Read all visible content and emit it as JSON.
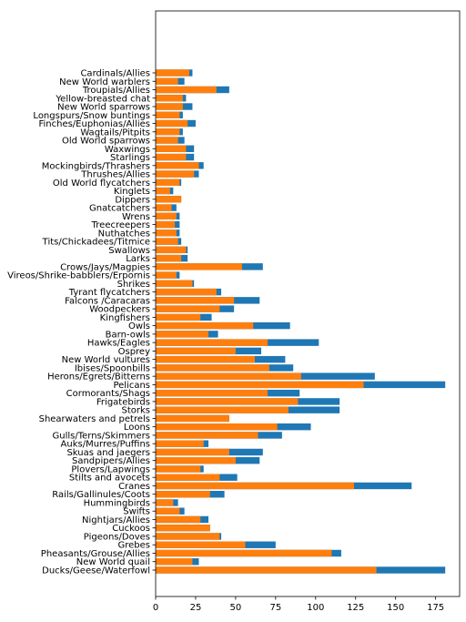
{
  "chart_data": {
    "type": "bar",
    "orientation": "horizontal",
    "stacked": false,
    "title": "",
    "xlabel": "",
    "ylabel": "",
    "xlim": [
      0,
      190
    ],
    "xticks": [
      0,
      25,
      50,
      75,
      100,
      125,
      150,
      175
    ],
    "grid": false,
    "legend": "none",
    "categories": [
      "Ducks/Geese/Waterfowl",
      "New World quail",
      "Pheasants/Grouse/Allies",
      "Grebes",
      "Pigeons/Doves",
      "Cuckoos",
      "Nightjars/Allies",
      "Swifts",
      "Hummingbirds",
      "Rails/Gallinules/Coots",
      "Cranes",
      "Stilts and avocets",
      "Plovers/Lapwings",
      "Sandpipers/Allies",
      "Skuas and jaegers",
      "Auks/Murres/Puffins",
      "Gulls/Terns/Skimmers",
      "Loons",
      "Shearwaters and petrels",
      "Storks",
      "Frigatebirds",
      "Cormorants/Shags",
      "Pelicans",
      "Herons/Egrets/Bitterns",
      "Ibises/Spoonbills",
      "New World vultures",
      "Osprey",
      "Hawks/Eagles",
      "Barn-owls",
      "Owls",
      "Kingfishers",
      "Woodpeckers",
      "Falcons /Caracaras",
      "Tyrant flycatchers",
      "Shrikes",
      "Vireos/Shrike-babblers/Erpornis",
      "Crows/Jays/Magpies",
      "Larks",
      "Swallows",
      "Tits/Chickadees/Titmice",
      "Nuthatches",
      "Treecreepers",
      "Wrens",
      "Gnatcatchers",
      "Dippers",
      "Kinglets",
      "Old World flycatchers",
      "Thrushes/Allies",
      "Mockingbirds/Thrashers",
      "Starlings",
      "Waxwings",
      "Old World sparrows",
      "Wagtails/Pitpits",
      "Finches/Euphonias/Allies",
      "Longspurs/Snow buntings",
      "New World sparrows",
      "Yellow-breasted chat",
      "Troupials/Allies",
      "New World warblers",
      "Cardinals/Allies"
    ],
    "series": [
      {
        "color": "#1f77b4",
        "values": [
          181,
          27,
          116,
          75,
          41,
          34,
          33,
          18,
          14,
          43,
          160,
          51,
          30,
          65,
          67,
          33,
          79,
          97,
          46,
          115,
          115,
          90,
          181,
          137,
          86,
          81,
          66,
          102,
          39,
          84,
          35,
          49,
          65,
          41,
          24,
          15,
          67,
          20,
          20,
          16,
          15,
          15,
          15,
          13,
          16,
          11,
          16,
          27,
          30,
          24,
          24,
          18,
          17,
          25,
          17,
          23,
          19,
          46,
          18,
          23
        ]
      },
      {
        "color": "#ff7f0e",
        "values": [
          138,
          23,
          110,
          56,
          40,
          34,
          28,
          15,
          11,
          34,
          124,
          40,
          28,
          50,
          46,
          30,
          64,
          76,
          46,
          83,
          89,
          70,
          130,
          91,
          71,
          62,
          50,
          70,
          33,
          61,
          28,
          40,
          49,
          38,
          23,
          13,
          54,
          16,
          19,
          14,
          13,
          12,
          13,
          10,
          16,
          9,
          15,
          24,
          27,
          19,
          19,
          14,
          15,
          20,
          15,
          17,
          17,
          38,
          14,
          21
        ]
      }
    ]
  }
}
